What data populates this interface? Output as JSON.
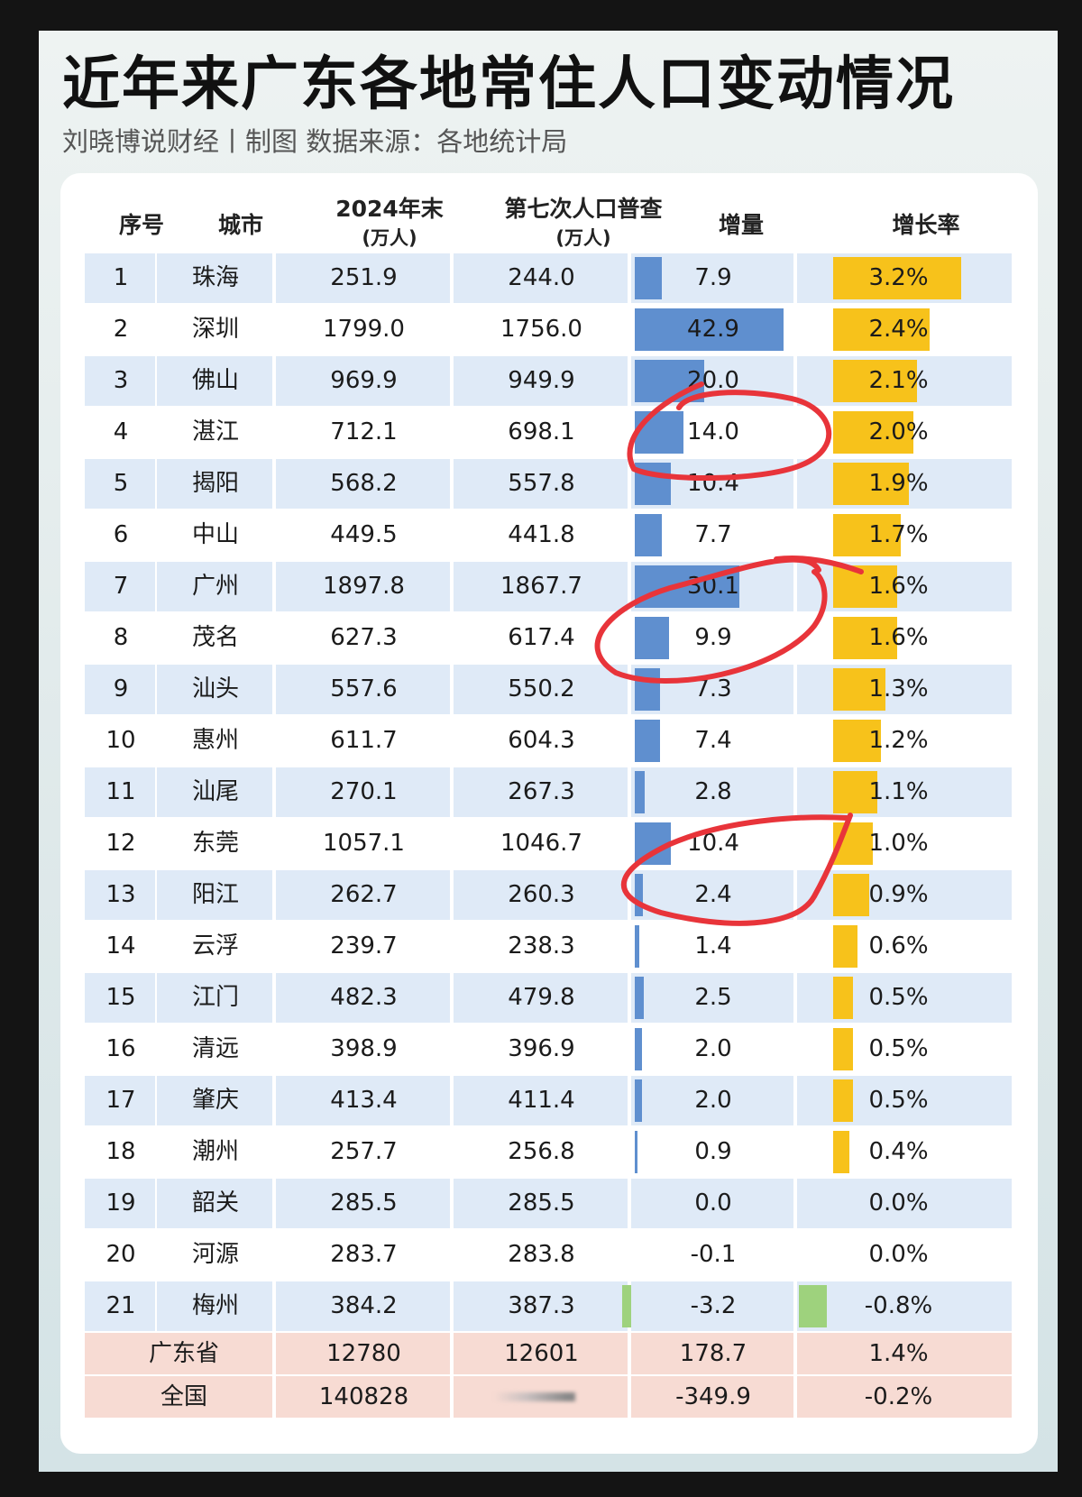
{
  "title": "近年来广东各地常住人口变动情况",
  "subtitle": "刘晓博说财经丨制图    数据来源：各地统计局",
  "colors": {
    "increase_bar": "#5f8fcf",
    "rate_bar": "#f7c21b",
    "negative_bar": "#9ed27d",
    "annotation": "#e8343a"
  },
  "chart_data": {
    "type": "table",
    "columns": [
      {
        "label": "序号"
      },
      {
        "label": "城市"
      },
      {
        "label": "2024年末",
        "sub": "(万人)"
      },
      {
        "label": "第七次人口普查",
        "sub": "(万人)"
      },
      {
        "label": "增量"
      },
      {
        "label": "增长率"
      }
    ],
    "rows": [
      {
        "rank": "1",
        "city": "珠海",
        "pop2024": "251.9",
        "census7": "244.0",
        "increase": "7.9",
        "rate": "3.2%",
        "increase_value": 7.9,
        "rate_value": 3.2
      },
      {
        "rank": "2",
        "city": "深圳",
        "pop2024": "1799.0",
        "census7": "1756.0",
        "increase": "42.9",
        "rate": "2.4%",
        "increase_value": 42.9,
        "rate_value": 2.4
      },
      {
        "rank": "3",
        "city": "佛山",
        "pop2024": "969.9",
        "census7": "949.9",
        "increase": "20.0",
        "rate": "2.1%",
        "increase_value": 20.0,
        "rate_value": 2.1
      },
      {
        "rank": "4",
        "city": "湛江",
        "pop2024": "712.1",
        "census7": "698.1",
        "increase": "14.0",
        "rate": "2.0%",
        "increase_value": 14.0,
        "rate_value": 2.0
      },
      {
        "rank": "5",
        "city": "揭阳",
        "pop2024": "568.2",
        "census7": "557.8",
        "increase": "10.4",
        "rate": "1.9%",
        "increase_value": 10.4,
        "rate_value": 1.9
      },
      {
        "rank": "6",
        "city": "中山",
        "pop2024": "449.5",
        "census7": "441.8",
        "increase": "7.7",
        "rate": "1.7%",
        "increase_value": 7.7,
        "rate_value": 1.7
      },
      {
        "rank": "7",
        "city": "广州",
        "pop2024": "1897.8",
        "census7": "1867.7",
        "increase": "30.1",
        "rate": "1.6%",
        "increase_value": 30.1,
        "rate_value": 1.6
      },
      {
        "rank": "8",
        "city": "茂名",
        "pop2024": "627.3",
        "census7": "617.4",
        "increase": "9.9",
        "rate": "1.6%",
        "increase_value": 9.9,
        "rate_value": 1.6
      },
      {
        "rank": "9",
        "city": "汕头",
        "pop2024": "557.6",
        "census7": "550.2",
        "increase": "7.3",
        "rate": "1.3%",
        "increase_value": 7.3,
        "rate_value": 1.3
      },
      {
        "rank": "10",
        "city": "惠州",
        "pop2024": "611.7",
        "census7": "604.3",
        "increase": "7.4",
        "rate": "1.2%",
        "increase_value": 7.4,
        "rate_value": 1.2
      },
      {
        "rank": "11",
        "city": "汕尾",
        "pop2024": "270.1",
        "census7": "267.3",
        "increase": "2.8",
        "rate": "1.1%",
        "increase_value": 2.8,
        "rate_value": 1.1
      },
      {
        "rank": "12",
        "city": "东莞",
        "pop2024": "1057.1",
        "census7": "1046.7",
        "increase": "10.4",
        "rate": "1.0%",
        "increase_value": 10.4,
        "rate_value": 1.0
      },
      {
        "rank": "13",
        "city": "阳江",
        "pop2024": "262.7",
        "census7": "260.3",
        "increase": "2.4",
        "rate": "0.9%",
        "increase_value": 2.4,
        "rate_value": 0.9
      },
      {
        "rank": "14",
        "city": "云浮",
        "pop2024": "239.7",
        "census7": "238.3",
        "increase": "1.4",
        "rate": "0.6%",
        "increase_value": 1.4,
        "rate_value": 0.6
      },
      {
        "rank": "15",
        "city": "江门",
        "pop2024": "482.3",
        "census7": "479.8",
        "increase": "2.5",
        "rate": "0.5%",
        "increase_value": 2.5,
        "rate_value": 0.5
      },
      {
        "rank": "16",
        "city": "清远",
        "pop2024": "398.9",
        "census7": "396.9",
        "increase": "2.0",
        "rate": "0.5%",
        "increase_value": 2.0,
        "rate_value": 0.5
      },
      {
        "rank": "17",
        "city": "肇庆",
        "pop2024": "413.4",
        "census7": "411.4",
        "increase": "2.0",
        "rate": "0.5%",
        "increase_value": 2.0,
        "rate_value": 0.5
      },
      {
        "rank": "18",
        "city": "潮州",
        "pop2024": "257.7",
        "census7": "256.8",
        "increase": "0.9",
        "rate": "0.4%",
        "increase_value": 0.9,
        "rate_value": 0.4
      },
      {
        "rank": "19",
        "city": "韶关",
        "pop2024": "285.5",
        "census7": "285.5",
        "increase": "0.0",
        "rate": "0.0%",
        "increase_value": 0.0,
        "rate_value": 0.0
      },
      {
        "rank": "20",
        "city": "河源",
        "pop2024": "283.7",
        "census7": "283.8",
        "increase": "-0.1",
        "rate": "0.0%",
        "increase_value": -0.1,
        "rate_value": 0.0
      },
      {
        "rank": "21",
        "city": "梅州",
        "pop2024": "384.2",
        "census7": "387.3",
        "increase": "-3.2",
        "rate": "-0.8%",
        "increase_value": -3.2,
        "rate_value": -0.8
      }
    ],
    "totals": [
      {
        "label": "广东省",
        "pop2024": "12780",
        "census7": "12601",
        "increase": "178.7",
        "rate": "1.4%"
      },
      {
        "label": "全国",
        "pop2024": "140828",
        "census7": "",
        "increase": "-349.9",
        "rate": "-0.2%"
      }
    ],
    "increase_scale_max": 42.9,
    "rate_scale_max": 3.2
  }
}
